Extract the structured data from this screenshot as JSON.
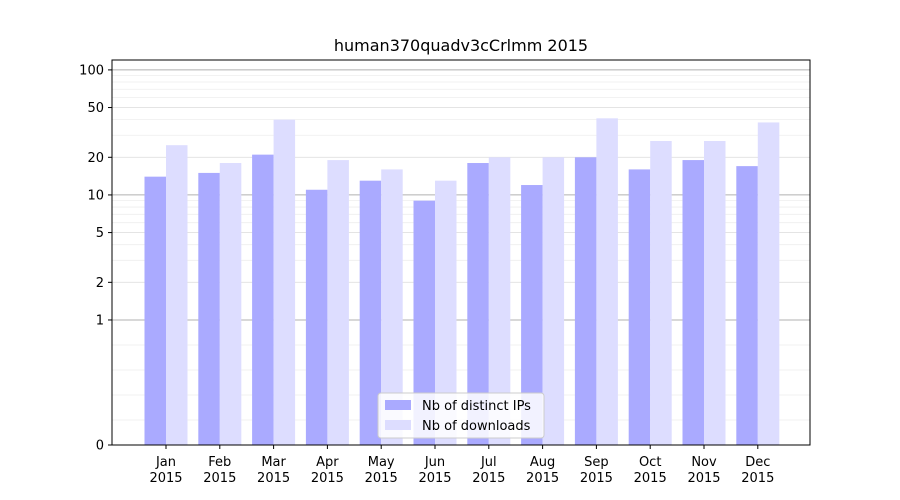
{
  "chart_data": {
    "type": "bar",
    "title": "human370quadv3cCrlmm 2015",
    "xlabel": "",
    "ylabel": "",
    "y_scale": "symlog",
    "ylim": [
      0,
      120
    ],
    "y_ticks": [
      0,
      1,
      2,
      5,
      10,
      20,
      50,
      100
    ],
    "y_tick_labels": [
      "0",
      "1",
      "2",
      "5",
      "10",
      "20",
      "50",
      "100"
    ],
    "grid": true,
    "legend_position": "bottom-center",
    "categories": [
      [
        "Jan",
        "2015"
      ],
      [
        "Feb",
        "2015"
      ],
      [
        "Mar",
        "2015"
      ],
      [
        "Apr",
        "2015"
      ],
      [
        "May",
        "2015"
      ],
      [
        "Jun",
        "2015"
      ],
      [
        "Jul",
        "2015"
      ],
      [
        "Aug",
        "2015"
      ],
      [
        "Sep",
        "2015"
      ],
      [
        "Oct",
        "2015"
      ],
      [
        "Nov",
        "2015"
      ],
      [
        "Dec",
        "2015"
      ]
    ],
    "series": [
      {
        "name": "Nb of distinct IPs",
        "color": "#aaaaff",
        "values": [
          14,
          15,
          21,
          11,
          13,
          9,
          18,
          12,
          20,
          16,
          19,
          17
        ]
      },
      {
        "name": "Nb of downloads",
        "color": "#ddddff",
        "values": [
          25,
          18,
          40,
          19,
          16,
          13,
          20,
          20,
          41,
          27,
          27,
          38
        ]
      }
    ]
  }
}
